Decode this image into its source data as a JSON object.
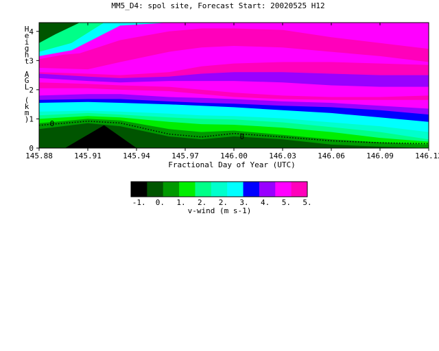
{
  "chart_data": {
    "type": "heatmap",
    "title": "MM5_D4: spol site,  Forecast Start: 20020525 H12",
    "xlabel": "Fractional Day of Year (UTC)",
    "ylabel": "Height AGL (km)",
    "xlim": [
      145.88,
      146.12
    ],
    "ylim": [
      0,
      4.3
    ],
    "x_ticks": [
      "145.88",
      "145.91",
      "145.94",
      "145.97",
      "146.00",
      "146.03",
      "146.06",
      "146.09",
      "146.12"
    ],
    "y_ticks": [
      "0",
      "1",
      "2",
      "3",
      "4"
    ],
    "contour_labels": [
      "0",
      "0"
    ],
    "colorbar": {
      "label": "v-wind (m s-1)",
      "tick_labels": [
        "-1.",
        "0.",
        "1.",
        "2.",
        "2.",
        "3.",
        "4.",
        "5.",
        "5."
      ],
      "colors": [
        "#000000",
        "#005500",
        "#009900",
        "#00ee00",
        "#00ff88",
        "#00ffcc",
        "#00ffff",
        "#0000ff",
        "#9900ff",
        "#ff00ff",
        "#ff00bb"
      ]
    },
    "bands": [
      {
        "level": 0,
        "upper": [
          [
            145.896,
            0
          ],
          [
            145.92,
            0.78
          ],
          [
            145.94,
            0
          ]
        ]
      },
      {
        "level": 1,
        "upper": [
          [
            145.88,
            0.65
          ],
          [
            145.91,
            0.85
          ],
          [
            145.93,
            0.75
          ],
          [
            145.96,
            0.4
          ],
          [
            145.98,
            0.3
          ],
          [
            146.0,
            0.4
          ],
          [
            146.03,
            0.3
          ],
          [
            146.06,
            0.12
          ],
          [
            146.09,
            0.05
          ],
          [
            146.12,
            0.0
          ]
        ]
      },
      {
        "level": 2,
        "upper": [
          [
            145.88,
            0.85
          ],
          [
            145.91,
            1.0
          ],
          [
            145.93,
            0.95
          ],
          [
            145.96,
            0.65
          ],
          [
            145.98,
            0.55
          ],
          [
            146.0,
            0.6
          ],
          [
            146.03,
            0.45
          ],
          [
            146.06,
            0.3
          ],
          [
            146.09,
            0.2
          ],
          [
            146.12,
            0.12
          ]
        ]
      },
      {
        "level": 3,
        "upper": [
          [
            145.88,
            1.0
          ],
          [
            145.91,
            1.1
          ],
          [
            145.93,
            1.05
          ],
          [
            145.96,
            0.9
          ],
          [
            145.98,
            0.82
          ],
          [
            146.0,
            0.8
          ],
          [
            146.03,
            0.7
          ],
          [
            146.06,
            0.55
          ],
          [
            146.09,
            0.35
          ],
          [
            146.12,
            0.22
          ]
        ]
      },
      {
        "level": 4,
        "upper": [
          [
            145.88,
            1.12
          ],
          [
            145.91,
            1.2
          ],
          [
            145.93,
            1.15
          ],
          [
            145.96,
            1.05
          ],
          [
            145.98,
            1.0
          ],
          [
            146.0,
            0.98
          ],
          [
            146.03,
            0.88
          ],
          [
            146.06,
            0.72
          ],
          [
            146.09,
            0.55
          ],
          [
            146.12,
            0.3
          ]
        ]
      },
      {
        "level": 5,
        "upper": [
          [
            145.88,
            1.25
          ],
          [
            145.91,
            1.28
          ],
          [
            145.93,
            1.25
          ],
          [
            145.96,
            1.18
          ],
          [
            145.98,
            1.12
          ],
          [
            146.0,
            1.1
          ],
          [
            146.03,
            1.02
          ],
          [
            146.06,
            0.88
          ],
          [
            146.09,
            0.75
          ],
          [
            146.12,
            0.55
          ]
        ]
      },
      {
        "level": 6,
        "upper": [
          [
            145.88,
            1.55
          ],
          [
            145.91,
            1.58
          ],
          [
            145.93,
            1.55
          ],
          [
            145.96,
            1.5
          ],
          [
            145.98,
            1.45
          ],
          [
            146.0,
            1.4
          ],
          [
            146.03,
            1.3
          ],
          [
            146.06,
            1.2
          ],
          [
            146.09,
            1.05
          ],
          [
            146.12,
            0.9
          ]
        ]
      },
      {
        "level": 7,
        "upper": [
          [
            145.88,
            1.65
          ],
          [
            145.91,
            1.68
          ],
          [
            145.93,
            1.68
          ],
          [
            145.96,
            1.6
          ],
          [
            145.98,
            1.55
          ],
          [
            146.0,
            1.52
          ],
          [
            146.03,
            1.45
          ],
          [
            146.06,
            1.4
          ],
          [
            146.09,
            1.3
          ],
          [
            146.12,
            1.15
          ]
        ]
      },
      {
        "level": 8,
        "upper": [
          [
            145.88,
            1.8
          ],
          [
            145.91,
            1.85
          ],
          [
            145.93,
            1.85
          ],
          [
            145.96,
            1.75
          ],
          [
            145.98,
            1.72
          ],
          [
            146.0,
            1.68
          ],
          [
            146.03,
            1.6
          ],
          [
            146.06,
            1.55
          ],
          [
            146.09,
            1.45
          ],
          [
            146.12,
            1.35
          ]
        ]
      },
      {
        "level": 9,
        "upper": [
          [
            145.88,
            2.05
          ],
          [
            145.91,
            2.05
          ],
          [
            145.93,
            2.0
          ],
          [
            145.96,
            1.95
          ],
          [
            145.98,
            1.85
          ],
          [
            146.0,
            1.75
          ],
          [
            146.03,
            1.68
          ],
          [
            146.06,
            1.65
          ],
          [
            146.09,
            1.65
          ],
          [
            146.12,
            1.65
          ]
        ]
      },
      {
        "level": 10,
        "upper": [
          [
            145.88,
            2.25
          ],
          [
            145.91,
            2.2
          ],
          [
            145.93,
            2.15
          ],
          [
            145.96,
            2.1
          ],
          [
            145.98,
            2.0
          ],
          [
            146.0,
            1.9
          ],
          [
            146.03,
            1.8
          ],
          [
            146.06,
            1.75
          ],
          [
            146.09,
            1.75
          ],
          [
            146.12,
            1.8
          ]
        ]
      },
      {
        "level": 9,
        "upper": [
          [
            145.88,
            2.4
          ],
          [
            145.91,
            2.3
          ],
          [
            145.93,
            2.25
          ],
          [
            145.96,
            2.3
          ],
          [
            145.98,
            2.3
          ],
          [
            146.0,
            2.3
          ],
          [
            146.03,
            2.25
          ],
          [
            146.06,
            2.15
          ],
          [
            146.09,
            2.1
          ],
          [
            146.12,
            2.1
          ]
        ]
      },
      {
        "level": 8,
        "upper": [
          [
            145.88,
            2.55
          ],
          [
            145.91,
            2.45
          ],
          [
            145.93,
            2.4
          ],
          [
            145.96,
            2.45
          ],
          [
            145.98,
            2.55
          ],
          [
            146.0,
            2.6
          ],
          [
            146.03,
            2.6
          ],
          [
            146.06,
            2.55
          ],
          [
            146.09,
            2.5
          ],
          [
            146.12,
            2.5
          ]
        ]
      },
      {
        "level": 10,
        "upper": [
          [
            145.88,
            2.6
          ],
          [
            145.91,
            2.55
          ],
          [
            145.93,
            2.5
          ],
          [
            145.96,
            2.6
          ],
          [
            145.98,
            2.8
          ],
          [
            146.0,
            2.9
          ],
          [
            146.03,
            2.95
          ],
          [
            146.06,
            2.95
          ],
          [
            146.09,
            2.9
          ],
          [
            146.12,
            2.85
          ]
        ]
      },
      {
        "level": 9,
        "upper": [
          [
            145.88,
            2.75
          ],
          [
            145.91,
            2.7
          ],
          [
            145.93,
            2.95
          ],
          [
            145.96,
            3.3
          ],
          [
            145.98,
            3.45
          ],
          [
            146.0,
            3.5
          ],
          [
            146.03,
            3.45
          ],
          [
            146.06,
            3.3
          ],
          [
            146.09,
            3.15
          ],
          [
            146.12,
            2.95
          ]
        ]
      },
      {
        "level": 10,
        "upper": [
          [
            145.88,
            3.05
          ],
          [
            145.895,
            3.2
          ],
          [
            145.905,
            3.25
          ],
          [
            145.93,
            3.7
          ],
          [
            145.96,
            4.0
          ],
          [
            145.98,
            4.1
          ],
          [
            146.0,
            4.1
          ],
          [
            146.03,
            4.05
          ],
          [
            146.06,
            3.8
          ],
          [
            146.09,
            3.6
          ],
          [
            146.12,
            3.4
          ]
        ]
      },
      {
        "level": 9,
        "upper": [
          [
            145.88,
            3.15
          ],
          [
            145.9,
            3.35
          ],
          [
            145.93,
            4.2
          ],
          [
            145.96,
            4.3
          ],
          [
            146.0,
            4.3
          ],
          [
            146.03,
            4.3
          ],
          [
            146.06,
            4.3
          ],
          [
            146.09,
            4.3
          ],
          [
            146.12,
            4.3
          ]
        ]
      },
      {
        "level": 6,
        "upper": [
          [
            145.88,
            3.3
          ],
          [
            145.9,
            3.6
          ],
          [
            145.92,
            4.3
          ],
          [
            146.12,
            4.3
          ]
        ]
      },
      {
        "level": 4,
        "upper": [
          [
            145.88,
            3.6
          ],
          [
            145.89,
            3.9
          ],
          [
            145.905,
            4.3
          ],
          [
            146.12,
            4.3
          ]
        ]
      }
    ],
    "dotted_contour": [
      [
        145.88,
        0.78
      ],
      [
        145.91,
        0.92
      ],
      [
        145.93,
        0.86
      ],
      [
        145.96,
        0.48
      ],
      [
        145.98,
        0.38
      ],
      [
        146.0,
        0.5
      ],
      [
        146.03,
        0.38
      ],
      [
        146.06,
        0.25
      ],
      [
        146.09,
        0.18
      ],
      [
        146.12,
        0.15
      ]
    ]
  }
}
